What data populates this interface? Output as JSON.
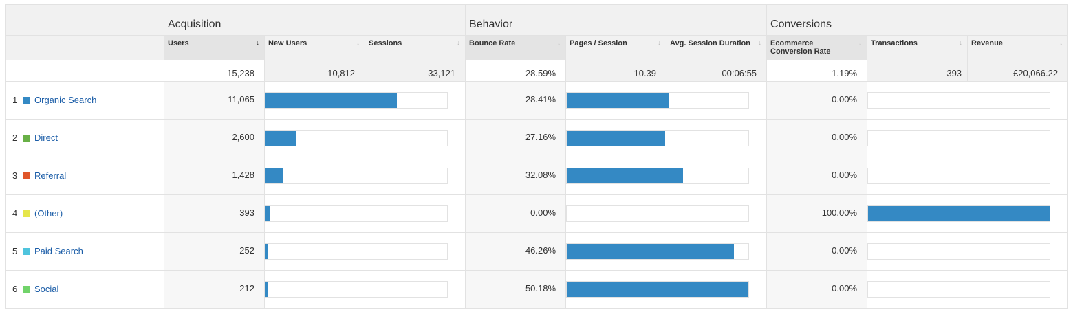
{
  "report": {
    "groups": {
      "acquisition": "Acquisition",
      "behavior": "Behavior",
      "conversions": "Conversions"
    },
    "metrics": {
      "users": "Users",
      "new_users": "New Users",
      "sessions": "Sessions",
      "bounce_rate": "Bounce Rate",
      "pages_session": "Pages / Session",
      "avg_session_duration": "Avg. Session Duration",
      "ecommerce_conversion_rate": "Ecommerce Conversion Rate",
      "transactions": "Transactions",
      "revenue": "Revenue"
    },
    "sort_icons": {
      "sorted": "↓",
      "unsorted": "↓"
    },
    "totals": {
      "users": "15,238",
      "new_users": "10,812",
      "sessions": "33,121",
      "bounce_rate": "28.59%",
      "pages_session": "10.39",
      "avg_session_duration": "00:06:55",
      "ecommerce_conversion_rate": "1.19%",
      "transactions": "393",
      "revenue": "£20,066.22"
    },
    "rows": [
      {
        "index": "1",
        "channel": "Organic Search",
        "color": "#3489c4",
        "users": "11,065",
        "bounce_rate": "28.41%",
        "ecommerce_conversion_rate": "0.00%",
        "users_bar": 0.723,
        "pages_bar": 0.565,
        "conv_bar": 0.0
      },
      {
        "index": "2",
        "channel": "Direct",
        "color": "#68b046",
        "users": "2,600",
        "bounce_rate": "27.16%",
        "ecommerce_conversion_rate": "0.00%",
        "users_bar": 0.17,
        "pages_bar": 0.542,
        "conv_bar": 0.0
      },
      {
        "index": "3",
        "channel": "Referral",
        "color": "#e0562a",
        "users": "1,428",
        "bounce_rate": "32.08%",
        "ecommerce_conversion_rate": "0.00%",
        "users_bar": 0.093,
        "pages_bar": 0.64,
        "conv_bar": 0.0
      },
      {
        "index": "4",
        "channel": "(Other)",
        "color": "#e6e64b",
        "users": "393",
        "bounce_rate": "0.00%",
        "ecommerce_conversion_rate": "100.00%",
        "users_bar": 0.026,
        "pages_bar": 0.0,
        "conv_bar": 1.0
      },
      {
        "index": "5",
        "channel": "Paid Search",
        "color": "#4fc4dd",
        "users": "252",
        "bounce_rate": "46.26%",
        "ecommerce_conversion_rate": "0.00%",
        "users_bar": 0.016,
        "pages_bar": 0.922,
        "conv_bar": 0.0
      },
      {
        "index": "6",
        "channel": "Social",
        "color": "#71d36a",
        "users": "212",
        "bounce_rate": "50.18%",
        "ecommerce_conversion_rate": "0.00%",
        "users_bar": 0.014,
        "pages_bar": 1.0,
        "conv_bar": 0.0
      }
    ]
  }
}
